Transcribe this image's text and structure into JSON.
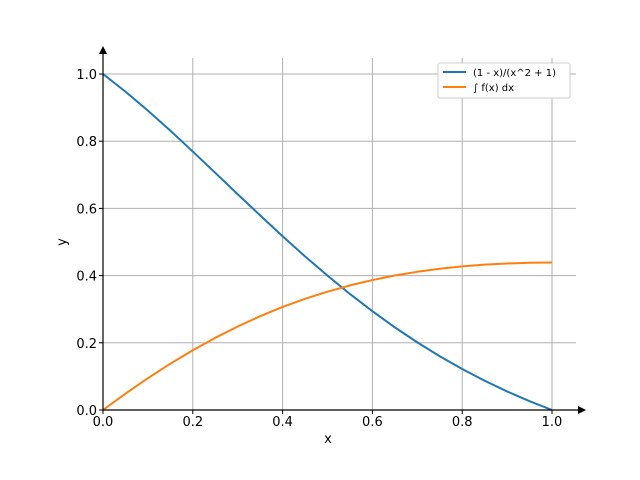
{
  "chart_data": {
    "type": "line",
    "title": "",
    "xlabel": "x",
    "ylabel": "y",
    "xlim": [
      0,
      1.05
    ],
    "ylim": [
      0,
      1.05
    ],
    "xticks": [
      0.0,
      0.2,
      0.4,
      0.6,
      0.8,
      1.0
    ],
    "yticks": [
      0.0,
      0.2,
      0.4,
      0.6,
      0.8,
      1.0
    ],
    "xtick_labels": [
      "0.0",
      "0.2",
      "0.4",
      "0.6",
      "0.8",
      "1.0"
    ],
    "ytick_labels": [
      "0.0",
      "0.2",
      "0.4",
      "0.6",
      "0.8",
      "1.0"
    ],
    "grid": true,
    "legend_position": "top-right",
    "series": [
      {
        "name": "(1 - x)/(x^2 + 1)",
        "color": "#1f77b4",
        "x": [
          0,
          0.05,
          0.1,
          0.15,
          0.2,
          0.25,
          0.3,
          0.35,
          0.4,
          0.45,
          0.5,
          0.55,
          0.6,
          0.65,
          0.7,
          0.75,
          0.8,
          0.85,
          0.9,
          0.95,
          1.0
        ],
        "y": [
          1.0,
          0.9476,
          0.8911,
          0.8314,
          0.7692,
          0.7059,
          0.6422,
          0.5792,
          0.5172,
          0.4571,
          0.4,
          0.3453,
          0.2941,
          0.2459,
          0.2013,
          0.16,
          0.122,
          0.0871,
          0.0552,
          0.0262,
          0.0
        ]
      },
      {
        "name": "∫ f(x) dx",
        "color": "#ff7f0e",
        "x": [
          0,
          0.05,
          0.1,
          0.15,
          0.2,
          0.25,
          0.3,
          0.35,
          0.4,
          0.45,
          0.5,
          0.55,
          0.6,
          0.65,
          0.7,
          0.75,
          0.8,
          0.85,
          0.9,
          0.95,
          1.0
        ],
        "y": [
          0.0,
          0.0487,
          0.0947,
          0.1378,
          0.1778,
          0.2148,
          0.2485,
          0.2791,
          0.3066,
          0.3309,
          0.3522,
          0.3708,
          0.3867,
          0.4002,
          0.4113,
          0.4203,
          0.4273,
          0.4326,
          0.4361,
          0.4381,
          0.4388
        ]
      }
    ]
  }
}
